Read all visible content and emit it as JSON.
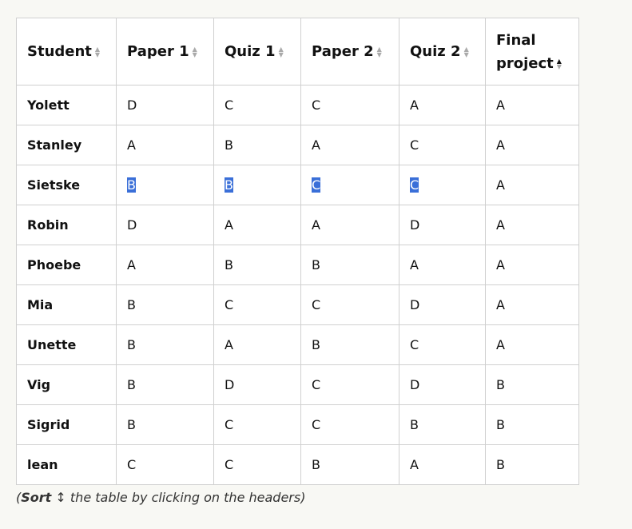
{
  "table": {
    "headers": [
      "Student",
      "Paper 1",
      "Quiz 1",
      "Paper 2",
      "Quiz 2",
      "Final project"
    ],
    "sorted_column": "Final project",
    "sort_direction": "ascending",
    "rows": [
      [
        "Yolett",
        "D",
        "C",
        "C",
        "A",
        "A"
      ],
      [
        "Stanley",
        "A",
        "B",
        "A",
        "C",
        "A"
      ],
      [
        "Sietske",
        "B",
        "B",
        "C",
        "C",
        "A"
      ],
      [
        "Robin",
        "D",
        "A",
        "A",
        "D",
        "A"
      ],
      [
        "Phoebe",
        "A",
        "B",
        "B",
        "A",
        "A"
      ],
      [
        "Mia",
        "B",
        "C",
        "C",
        "D",
        "A"
      ],
      [
        "Unette",
        "B",
        "A",
        "B",
        "C",
        "A"
      ],
      [
        "Vig",
        "B",
        "D",
        "C",
        "D",
        "B"
      ],
      [
        "Sigrid",
        "B",
        "C",
        "C",
        "B",
        "B"
      ],
      [
        "lean",
        "C",
        "C",
        "B",
        "A",
        "B"
      ]
    ],
    "selected_row": "Sietske"
  },
  "note": {
    "open": "(",
    "bold": "Sort",
    "icon": "↕",
    "rest": " the table by clicking on the headers)"
  },
  "colors": {
    "selection": "#3a6fd8",
    "border": "#d0d0d0",
    "background": "#f8f8f4"
  }
}
